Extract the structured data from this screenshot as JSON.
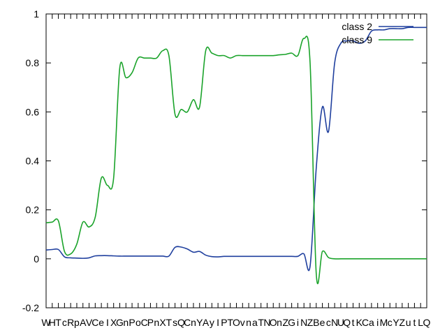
{
  "chart_data": {
    "type": "line",
    "title": "",
    "xlabel": "",
    "ylabel": "",
    "ylim": [
      -0.2,
      1.0
    ],
    "yticks": [
      -0.2,
      0,
      0.2,
      0.4,
      0.6,
      0.8,
      1
    ],
    "ytick_labels": [
      "-0.2",
      "0",
      "0.2",
      "0.4",
      "0.6",
      "0.8",
      "1"
    ],
    "x_tick_labels": [
      "W",
      "H",
      "T",
      "c",
      "R",
      "p",
      "A",
      "V",
      "C",
      "e",
      "I",
      "X",
      "G",
      "n",
      "P",
      "o",
      "C",
      "P",
      "n",
      "X",
      "T",
      "s",
      "Q",
      "C",
      "n",
      "Y",
      "A",
      "y",
      "I",
      "P",
      "T",
      "O",
      "v",
      "n",
      "a",
      "T",
      "N",
      "O",
      "n",
      "Z",
      "G",
      "i",
      "N",
      "Z",
      "B",
      "e",
      "c",
      "N",
      "U",
      "Q",
      "t",
      "K",
      "C",
      "a",
      "i",
      "M",
      "c",
      "Y",
      "Z",
      "u",
      "t",
      "L",
      "Q"
    ],
    "grid": false,
    "legend_position": "top-right",
    "x": [
      0,
      1,
      2,
      3,
      4,
      5,
      6,
      7,
      8,
      9,
      10,
      11,
      12,
      13,
      14,
      15,
      16,
      17,
      18,
      19,
      20,
      21,
      22,
      23,
      24,
      25,
      26,
      27,
      28,
      29,
      30,
      31,
      32,
      33,
      34,
      35,
      36,
      37,
      38,
      39,
      40,
      41,
      42,
      43,
      44,
      45,
      46,
      47,
      48,
      49,
      50,
      51,
      52,
      53,
      54,
      55,
      56,
      57,
      58,
      59,
      60,
      61,
      62
    ],
    "series": [
      {
        "name": "class 2",
        "color": "#1f3f9e",
        "values": [
          0.036,
          0.038,
          0.038,
          0.008,
          0.004,
          0.003,
          0.002,
          0.004,
          0.012,
          0.013,
          0.013,
          0.012,
          0.011,
          0.011,
          0.011,
          0.011,
          0.011,
          0.011,
          0.011,
          0.011,
          0.011,
          0.047,
          0.048,
          0.04,
          0.027,
          0.03,
          0.015,
          0.009,
          0.008,
          0.01,
          0.01,
          0.01,
          0.01,
          0.01,
          0.01,
          0.01,
          0.01,
          0.01,
          0.01,
          0.01,
          0.01,
          0.01,
          0.02,
          -0.03,
          0.37,
          0.62,
          0.52,
          0.8,
          0.88,
          0.89,
          0.89,
          0.88,
          0.89,
          0.93,
          0.935,
          0.935,
          0.94,
          0.94,
          0.94,
          0.945,
          0.945,
          0.945,
          0.945
        ]
      },
      {
        "name": "class 9",
        "color": "#1aa32a",
        "values": [
          0.147,
          0.15,
          0.155,
          0.03,
          0.02,
          0.06,
          0.15,
          0.13,
          0.17,
          0.33,
          0.3,
          0.33,
          0.78,
          0.74,
          0.76,
          0.82,
          0.82,
          0.82,
          0.82,
          0.85,
          0.83,
          0.59,
          0.61,
          0.6,
          0.65,
          0.62,
          0.85,
          0.84,
          0.83,
          0.83,
          0.82,
          0.83,
          0.83,
          0.83,
          0.83,
          0.83,
          0.83,
          0.83,
          0.833,
          0.835,
          0.84,
          0.83,
          0.9,
          0.8,
          -0.06,
          0.03,
          0.005,
          0.0,
          0.0,
          0.0,
          0.0,
          0.0,
          0.0,
          0.0,
          0.0,
          0.0,
          0.0,
          0.0,
          0.0,
          0.0,
          0.0,
          0.0,
          0.0
        ]
      }
    ]
  }
}
